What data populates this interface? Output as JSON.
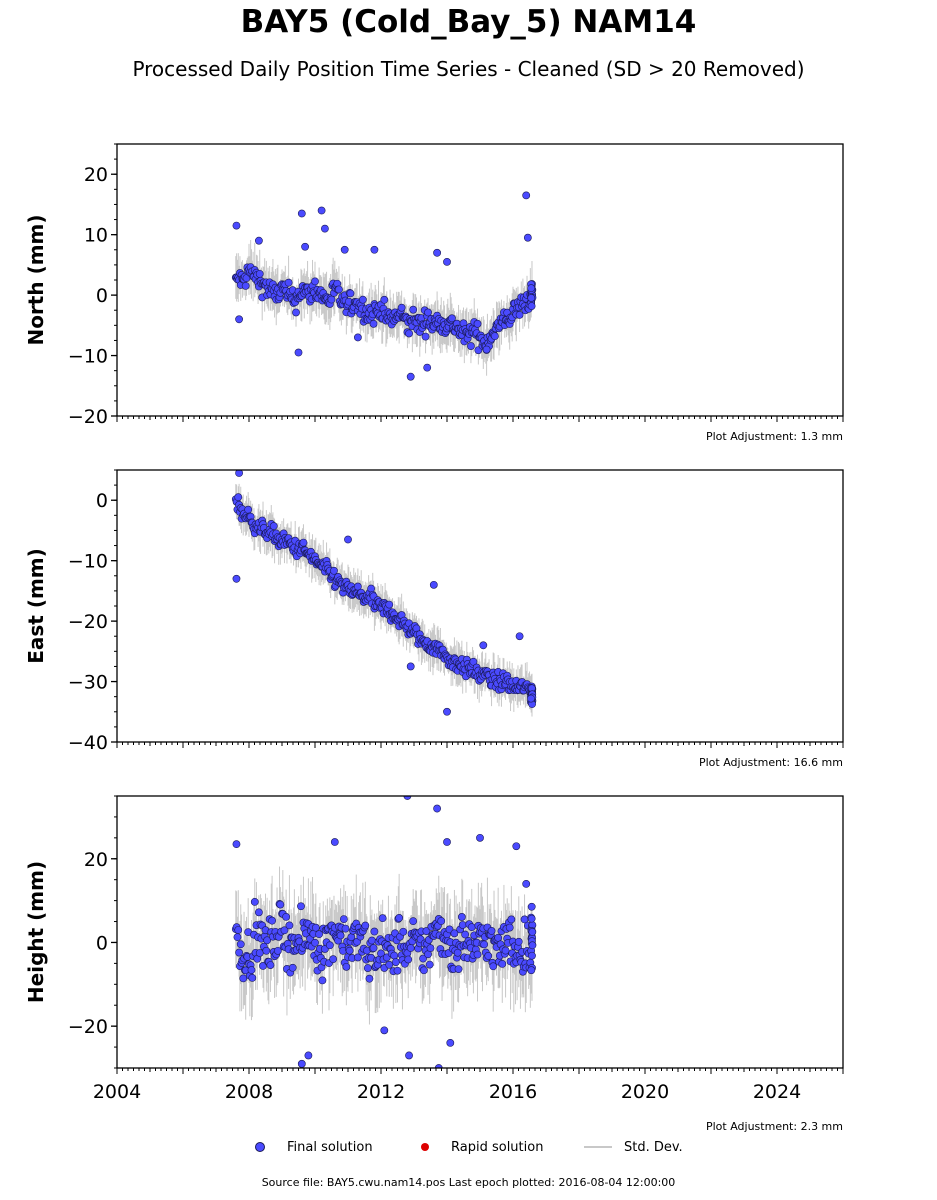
{
  "title": "BAY5 (Cold_Bay_5) NAM14",
  "subtitle": "Processed Daily Position Time Series - Cleaned (SD > 20 Removed)",
  "colors": {
    "final": "#4a4aff",
    "rapid": "#dd0000",
    "stddev": "#c8c8c8",
    "edge": "#1a1a55"
  },
  "chart_data": [
    {
      "type": "scatter",
      "ylabel": "North (mm)",
      "ylim": [
        -20,
        25
      ],
      "yticks": [
        20,
        10,
        0,
        -10,
        -20
      ],
      "xlim": [
        2004,
        2026
      ],
      "adjustment_note": "Plot Adjustment: 1.3 mm",
      "series": [
        {
          "name": "Final solution",
          "x": [
            2007.6,
            2007.7,
            2007.8,
            2008.0,
            2008.2,
            2008.4,
            2008.6,
            2008.8,
            2009.0,
            2009.2,
            2009.4,
            2009.6,
            2009.8,
            2010.0,
            2010.2,
            2010.4,
            2010.6,
            2010.8,
            2011.0,
            2011.2,
            2011.4,
            2011.6,
            2011.8,
            2012.0,
            2012.2,
            2012.4,
            2012.6,
            2012.8,
            2013.0,
            2013.2,
            2013.4,
            2013.6,
            2013.8,
            2014.0,
            2014.2,
            2014.4,
            2014.6,
            2014.8,
            2015.0,
            2015.2,
            2015.4,
            2015.6,
            2015.8,
            2016.0,
            2016.2,
            2016.4,
            2016.59
          ],
          "y": [
            2,
            3,
            2,
            4,
            3,
            2,
            1,
            0,
            1,
            0,
            -1,
            1,
            0,
            1,
            0,
            -1,
            1,
            -1,
            -2,
            -1,
            -2,
            -3,
            -3,
            -2,
            -4,
            -4,
            -3,
            -5,
            -4,
            -5,
            -4,
            -5,
            -4,
            -5,
            -5,
            -6,
            -7,
            -6,
            -7,
            -8,
            -6,
            -5,
            -4,
            -3,
            -2,
            -1,
            0
          ],
          "std": [
            3,
            3,
            3,
            3,
            3,
            3,
            3,
            3,
            3,
            3,
            3,
            3,
            3,
            3,
            3,
            3,
            3,
            3,
            3,
            3,
            3,
            3,
            3,
            3,
            3,
            3,
            3,
            3,
            3,
            3,
            3,
            3,
            3,
            3,
            3,
            3,
            3,
            3,
            3,
            3,
            3,
            3,
            3,
            3,
            3,
            3,
            3
          ],
          "outliers_x": [
            2007.62,
            2007.7,
            2008.3,
            2009.5,
            2009.6,
            2009.7,
            2010.2,
            2010.3,
            2010.9,
            2011.3,
            2011.8,
            2012.9,
            2013.4,
            2013.7,
            2014.0,
            2015.2,
            2016.4,
            2016.45
          ],
          "outliers_y": [
            11.5,
            -4,
            9,
            -9.5,
            13.5,
            8,
            14,
            11,
            7.5,
            -7,
            7.5,
            -13.5,
            -12,
            7,
            5.5,
            -9,
            16.5,
            9.5
          ]
        }
      ]
    },
    {
      "type": "scatter",
      "ylabel": "East (mm)",
      "ylim": [
        -40,
        5
      ],
      "yticks": [
        0,
        -10,
        -20,
        -30,
        -40
      ],
      "xlim": [
        2004,
        2026
      ],
      "adjustment_note": "Plot Adjustment: 16.6 mm",
      "series": [
        {
          "name": "Final solution",
          "x": [
            2007.6,
            2007.7,
            2007.8,
            2008.0,
            2008.2,
            2008.4,
            2008.6,
            2008.8,
            2009.0,
            2009.2,
            2009.4,
            2009.6,
            2009.8,
            2010.0,
            2010.2,
            2010.4,
            2010.6,
            2010.8,
            2011.0,
            2011.2,
            2011.4,
            2011.6,
            2011.8,
            2012.0,
            2012.2,
            2012.4,
            2012.6,
            2012.8,
            2013.0,
            2013.2,
            2013.4,
            2013.6,
            2013.8,
            2014.0,
            2014.2,
            2014.4,
            2014.6,
            2014.8,
            2015.0,
            2015.2,
            2015.4,
            2015.6,
            2015.8,
            2016.0,
            2016.2,
            2016.4,
            2016.59
          ],
          "y": [
            0,
            -1,
            -2,
            -3,
            -4,
            -5,
            -5,
            -6,
            -7,
            -7,
            -8,
            -8,
            -9,
            -10,
            -11,
            -12,
            -13,
            -14,
            -15,
            -15,
            -16,
            -16,
            -17,
            -18,
            -18,
            -19,
            -20,
            -21,
            -22,
            -23,
            -24,
            -24,
            -25,
            -26,
            -27,
            -27,
            -28,
            -28,
            -29,
            -29,
            -30,
            -30,
            -30,
            -31,
            -31,
            -31,
            -32
          ],
          "std": [
            2.5,
            2.5,
            2.5,
            2.5,
            2.5,
            2.5,
            2.5,
            2.5,
            2.5,
            2.5,
            2.5,
            2.5,
            2.5,
            2.5,
            2.5,
            2.5,
            2.5,
            2.5,
            2.5,
            2.5,
            2.5,
            2.5,
            2.5,
            2.5,
            2.5,
            2.5,
            2.5,
            2.5,
            2.5,
            2.5,
            2.5,
            2.5,
            2.5,
            2.5,
            2.5,
            2.5,
            2.5,
            2.5,
            2.5,
            2.5,
            2.5,
            2.5,
            2.5,
            2.5,
            2.5,
            2.5,
            2.5
          ],
          "outliers_x": [
            2007.62,
            2007.7,
            2011.0,
            2012.9,
            2013.6,
            2014.0,
            2015.1,
            2016.2
          ],
          "outliers_y": [
            -13,
            4.5,
            -6.5,
            -27.5,
            -14,
            -35,
            -24,
            -22.5
          ]
        }
      ]
    },
    {
      "type": "scatter",
      "ylabel": "Height (mm)",
      "ylim": [
        -30,
        35
      ],
      "yticks": [
        20,
        0,
        -20
      ],
      "xlim": [
        2004,
        2026
      ],
      "xticks": [
        "2004",
        "2008",
        "2012",
        "2016",
        "2020",
        "2024"
      ],
      "adjustment_note": "Plot Adjustment: 2.3 mm",
      "series": [
        {
          "name": "Final solution",
          "x": [
            2007.6,
            2007.7,
            2007.8,
            2008.0,
            2008.2,
            2008.4,
            2008.6,
            2008.8,
            2009.0,
            2009.2,
            2009.4,
            2009.6,
            2009.8,
            2010.0,
            2010.2,
            2010.4,
            2010.6,
            2010.8,
            2011.0,
            2011.2,
            2011.4,
            2011.6,
            2011.8,
            2012.0,
            2012.2,
            2012.4,
            2012.6,
            2012.8,
            2013.0,
            2013.2,
            2013.4,
            2013.6,
            2013.8,
            2014.0,
            2014.2,
            2014.4,
            2014.6,
            2014.8,
            2015.0,
            2015.2,
            2015.4,
            2015.6,
            2015.8,
            2016.0,
            2016.2,
            2016.4,
            2016.59
          ],
          "y": [
            2,
            0,
            -2,
            -3,
            1,
            0,
            -2,
            2,
            3,
            1,
            -1,
            0,
            2,
            1,
            -2,
            0,
            3,
            2,
            -1,
            0,
            1,
            -3,
            -2,
            0,
            -4,
            -2,
            1,
            -3,
            0,
            -2,
            -1,
            2,
            3,
            1,
            -2,
            0,
            1,
            -1,
            0,
            2,
            -1,
            -3,
            1,
            0,
            -2,
            -1,
            0
          ],
          "std": [
            8,
            8,
            8,
            8,
            8,
            8,
            8,
            8,
            8,
            8,
            8,
            8,
            8,
            8,
            8,
            8,
            8,
            8,
            8,
            8,
            8,
            8,
            8,
            8,
            8,
            8,
            8,
            8,
            8,
            8,
            8,
            8,
            8,
            8,
            8,
            8,
            8,
            8,
            8,
            8,
            8,
            8,
            8,
            8,
            8,
            8,
            8
          ],
          "outliers_x": [
            2007.62,
            2009.6,
            2009.8,
            2010.6,
            2012.1,
            2012.8,
            2012.85,
            2013.7,
            2013.75,
            2014.0,
            2014.1,
            2015.0,
            2016.1,
            2016.4
          ],
          "outliers_y": [
            23.5,
            -29,
            -27,
            24,
            -21,
            35,
            -27,
            32,
            -30,
            24,
            -24,
            25,
            23,
            14
          ]
        }
      ]
    }
  ],
  "legend": {
    "final_label": "Final solution",
    "rapid_label": "Rapid solution",
    "std_label": "Std. Dev."
  },
  "source_text": "Source file: BAY5.cwu.nam14.pos  Last epoch plotted: 2016-08-04 12:00:00"
}
